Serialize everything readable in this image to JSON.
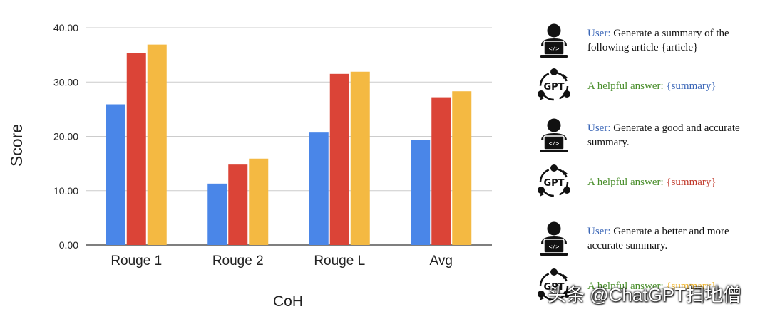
{
  "chart_data": {
    "type": "bar",
    "categories": [
      "Rouge 1",
      "Rouge 2",
      "Rouge L",
      "Avg"
    ],
    "series": [
      {
        "color": "#4a86e8",
        "values": [
          25.9,
          11.3,
          20.7,
          19.3
        ]
      },
      {
        "color": "#db4437",
        "values": [
          35.4,
          14.8,
          31.5,
          27.2
        ]
      },
      {
        "color": "#f4b942",
        "values": [
          36.9,
          15.9,
          31.9,
          28.3
        ]
      }
    ],
    "yticks": [
      "0.00",
      "10.00",
      "20.00",
      "30.00",
      "40.00"
    ],
    "ylim": [
      0,
      40
    ],
    "xlabel": "CoH",
    "ylabel": "Score",
    "grid": true
  },
  "legend": [
    {
      "kind": "user",
      "icon": "user-laptop-icon",
      "speaker": "User:",
      "text": " Generate a summary of the following article {article}",
      "color": "#3a66b7"
    },
    {
      "kind": "gpt",
      "icon": "gpt-cycle-icon",
      "speaker": "A helpful answer:",
      "text": " {summary}",
      "color": "#3a66b7"
    },
    {
      "kind": "user",
      "icon": "user-laptop-icon",
      "speaker": "User:",
      "text": " Generate a good and accurate summary.",
      "color": "#3a66b7"
    },
    {
      "kind": "gpt",
      "icon": "gpt-cycle-icon",
      "speaker": "A helpful answer:",
      "text": " {summary}",
      "color": "#c0392b"
    },
    {
      "kind": "user",
      "icon": "user-laptop-icon",
      "speaker": "User:",
      "text": " Generate a better and more accurate summary.",
      "color": "#3a66b7"
    },
    {
      "kind": "gpt",
      "icon": "gpt-cycle-icon",
      "speaker": "A helpful answer:",
      "text": " {summary}",
      "color": "#f0b429"
    }
  ],
  "watermark": "头条 @ChatGPT扫地僧"
}
